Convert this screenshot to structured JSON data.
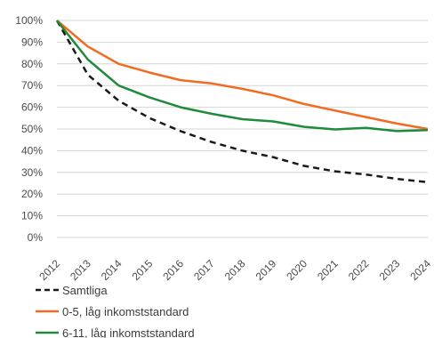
{
  "chart_data": {
    "type": "line",
    "title": "",
    "xlabel": "",
    "ylabel": "",
    "x": [
      "2012",
      "2013",
      "2014",
      "2015",
      "2016",
      "2017",
      "2018",
      "2019",
      "2020",
      "2021",
      "2022",
      "2023",
      "2024"
    ],
    "ylim": [
      0,
      100
    ],
    "y_ticks": [
      0,
      10,
      20,
      30,
      40,
      50,
      60,
      70,
      80,
      90,
      100
    ],
    "y_tick_labels": [
      "0%",
      "10%",
      "20%",
      "30%",
      "40%",
      "50%",
      "60%",
      "70%",
      "80%",
      "90%",
      "100%"
    ],
    "grid": "horizontal",
    "legend_position": "bottom-left",
    "series": [
      {
        "name": "Samtliga",
        "color": "#1a1a1a",
        "dash": "dashed",
        "values": [
          100,
          75,
          63,
          55,
          49,
          44,
          40,
          37,
          33,
          30.5,
          29,
          27,
          25.5
        ]
      },
      {
        "name": "0-5, låg inkomststandard",
        "color": "#f26b21",
        "dash": "solid",
        "values": [
          100,
          88,
          80,
          76,
          72.5,
          71,
          68.5,
          65.5,
          61.5,
          58.5,
          55.5,
          52.5,
          50
        ]
      },
      {
        "name": "6-11, låg inkomststandard",
        "color": "#1f8a3a",
        "dash": "solid",
        "values": [
          100,
          82,
          70,
          64.5,
          60,
          57,
          54.5,
          53.5,
          51,
          49.8,
          50.5,
          49,
          49.5
        ]
      }
    ]
  }
}
